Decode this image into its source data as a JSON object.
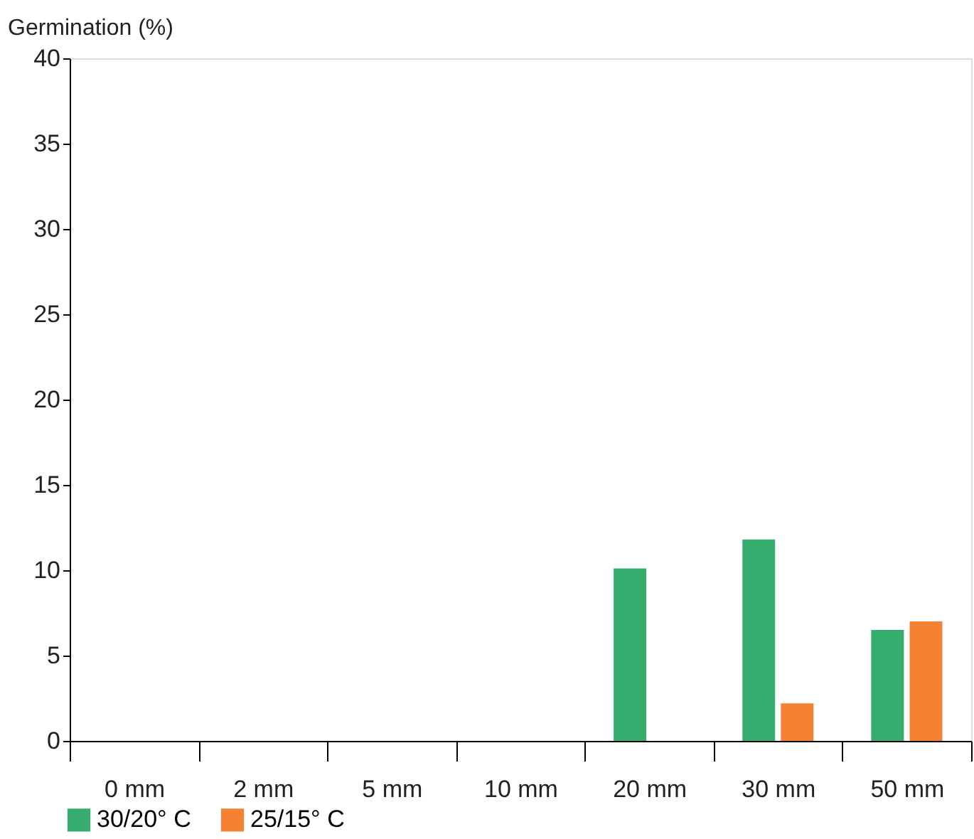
{
  "chart_data": {
    "type": "bar",
    "ylabel": "Germination (%)",
    "categories": [
      "0 mm",
      "2 mm",
      "5 mm",
      "10 mm",
      "20 mm",
      "30 mm",
      "50 mm"
    ],
    "series": [
      {
        "name": "30/20° C",
        "color": "#36ac6f",
        "values": [
          0,
          0,
          0,
          0,
          10.1,
          11.8,
          6.5
        ]
      },
      {
        "name": "25/15° C",
        "color": "#f58233",
        "values": [
          0,
          0,
          0,
          0,
          0,
          2.2,
          7.0
        ]
      }
    ],
    "ylim": [
      0,
      40
    ],
    "yticks": [
      0,
      5,
      10,
      15,
      20,
      25,
      30,
      35,
      40
    ],
    "grid": false,
    "legend": "bottom left"
  }
}
